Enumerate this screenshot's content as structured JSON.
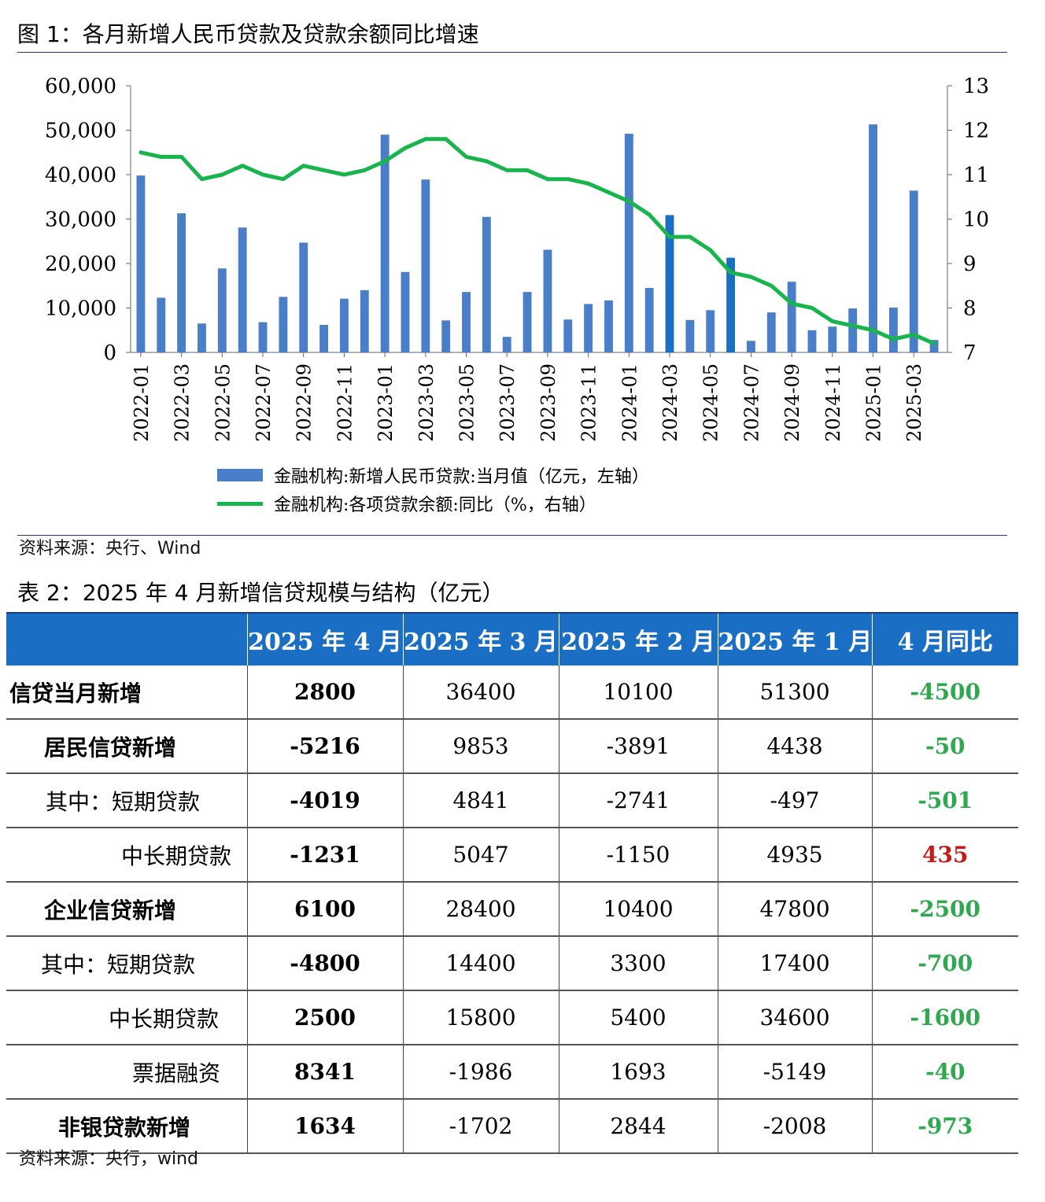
{
  "figure": {
    "title": "图 1：各月新增人民币贷款及贷款余额同比增速",
    "source": "资料来源：央行、Wind"
  },
  "chart_data": {
    "type": "bar+line",
    "x": [
      "2022-01",
      "2022-02",
      "2022-03",
      "2022-04",
      "2022-05",
      "2022-06",
      "2022-07",
      "2022-08",
      "2022-09",
      "2022-10",
      "2022-11",
      "2022-12",
      "2023-01",
      "2023-02",
      "2023-03",
      "2023-04",
      "2023-05",
      "2023-06",
      "2023-07",
      "2023-08",
      "2023-09",
      "2023-10",
      "2023-11",
      "2023-12",
      "2024-01",
      "2024-02",
      "2024-03",
      "2024-04",
      "2024-05",
      "2024-06",
      "2024-07",
      "2024-08",
      "2024-09",
      "2024-10",
      "2024-11",
      "2024-12",
      "2025-01",
      "2025-02",
      "2025-03",
      "2025-04"
    ],
    "x_tick_labels": [
      "2022-01",
      "2022-03",
      "2022-05",
      "2022-07",
      "2022-09",
      "2022-11",
      "2023-01",
      "2023-03",
      "2023-05",
      "2023-07",
      "2023-09",
      "2023-11",
      "2024-01",
      "2024-03",
      "2024-05",
      "2024-07",
      "2024-09",
      "2024-11",
      "2025-01",
      "2025-03"
    ],
    "series": [
      {
        "name": "金融机构:新增人民币贷款:当月值（亿元，左轴）",
        "type": "bar",
        "axis": "left",
        "color": "#4a7ec8",
        "values": [
          39800,
          12300,
          31300,
          6500,
          18900,
          28100,
          6800,
          12500,
          24700,
          6200,
          12100,
          14000,
          49000,
          18100,
          38900,
          7200,
          13600,
          30500,
          3500,
          13600,
          23100,
          7400,
          10900,
          11700,
          49200,
          14500,
          30900,
          7300,
          9500,
          21300,
          2600,
          9000,
          15900,
          5000,
          5800,
          9900,
          51300,
          10100,
          36400,
          2800
        ],
        "highlight_indices": [
          26,
          29
        ],
        "highlight_color": "#1a6fc4"
      },
      {
        "name": "金融机构:各项贷款余额:同比（%，右轴）",
        "type": "line",
        "axis": "right",
        "color": "#18b44c",
        "values": [
          11.5,
          11.4,
          11.4,
          10.9,
          11.0,
          11.2,
          11.0,
          10.9,
          11.2,
          11.1,
          11.0,
          11.1,
          11.3,
          11.6,
          11.8,
          11.8,
          11.4,
          11.3,
          11.1,
          11.1,
          10.9,
          10.9,
          10.8,
          10.6,
          10.4,
          10.1,
          9.6,
          9.6,
          9.3,
          8.8,
          8.7,
          8.5,
          8.1,
          8.0,
          7.7,
          7.6,
          7.5,
          7.3,
          7.4,
          7.2
        ]
      }
    ],
    "y_left": {
      "ticks": [
        "0",
        "10,000",
        "20,000",
        "30,000",
        "40,000",
        "50,000",
        "60,000"
      ],
      "ylim": [
        0,
        60000
      ]
    },
    "y_right": {
      "ticks": [
        "7",
        "8",
        "9",
        "10",
        "11",
        "12",
        "13"
      ],
      "ylim": [
        7,
        13
      ]
    },
    "legend": "bottom"
  },
  "table": {
    "title": "表 2：2025 年 4 月新增信贷规模与结构（亿元）",
    "headers": [
      "",
      "2025 年 4 月",
      "2025 年 3 月",
      "2025 年 2 月",
      "2025 年 1 月",
      "4 月同比"
    ],
    "rows": [
      {
        "label": "信贷当月新增",
        "cells": [
          "2800",
          "36400",
          "10100",
          "51300",
          "-4500"
        ],
        "yoy_color": "green",
        "indent": 0,
        "label_bold": true
      },
      {
        "label": "居民信贷新增",
        "cells": [
          "-5216",
          "9853",
          "-3891",
          "4438",
          "-50"
        ],
        "yoy_color": "green",
        "indent": 1,
        "label_bold": true
      },
      {
        "label": "其中：短期贷款",
        "cells": [
          "-4019",
          "4841",
          "-2741",
          "-497",
          "-501"
        ],
        "yoy_color": "green",
        "indent": 2,
        "label_bold": false
      },
      {
        "label": "中长期贷款",
        "cells": [
          "-1231",
          "5047",
          "-1150",
          "4935",
          "435"
        ],
        "yoy_color": "red",
        "indent": 3,
        "label_bold": false
      },
      {
        "label": "企业信贷新增",
        "cells": [
          "6100",
          "28400",
          "10400",
          "47800",
          "-2500"
        ],
        "yoy_color": "green",
        "indent": 1,
        "label_bold": true
      },
      {
        "label": "其中：短期贷款",
        "cells": [
          "-4800",
          "14400",
          "3300",
          "17400",
          "-700"
        ],
        "yoy_color": "green",
        "indent": 4,
        "label_bold": false
      },
      {
        "label": "中长期贷款",
        "cells": [
          "2500",
          "15800",
          "5400",
          "34600",
          "-1600"
        ],
        "yoy_color": "green",
        "indent": 5,
        "label_bold": false
      },
      {
        "label": "票据融资",
        "cells": [
          "8341",
          "-1986",
          "1693",
          "-5149",
          "-40"
        ],
        "yoy_color": "green",
        "indent": 6,
        "label_bold": false
      },
      {
        "label": "非银贷款新增",
        "cells": [
          "1634",
          "-1702",
          "2844",
          "-2008",
          "-973"
        ],
        "yoy_color": "green",
        "indent": 7,
        "label_bold": true
      }
    ],
    "source": "资料来源：央行，wind"
  }
}
